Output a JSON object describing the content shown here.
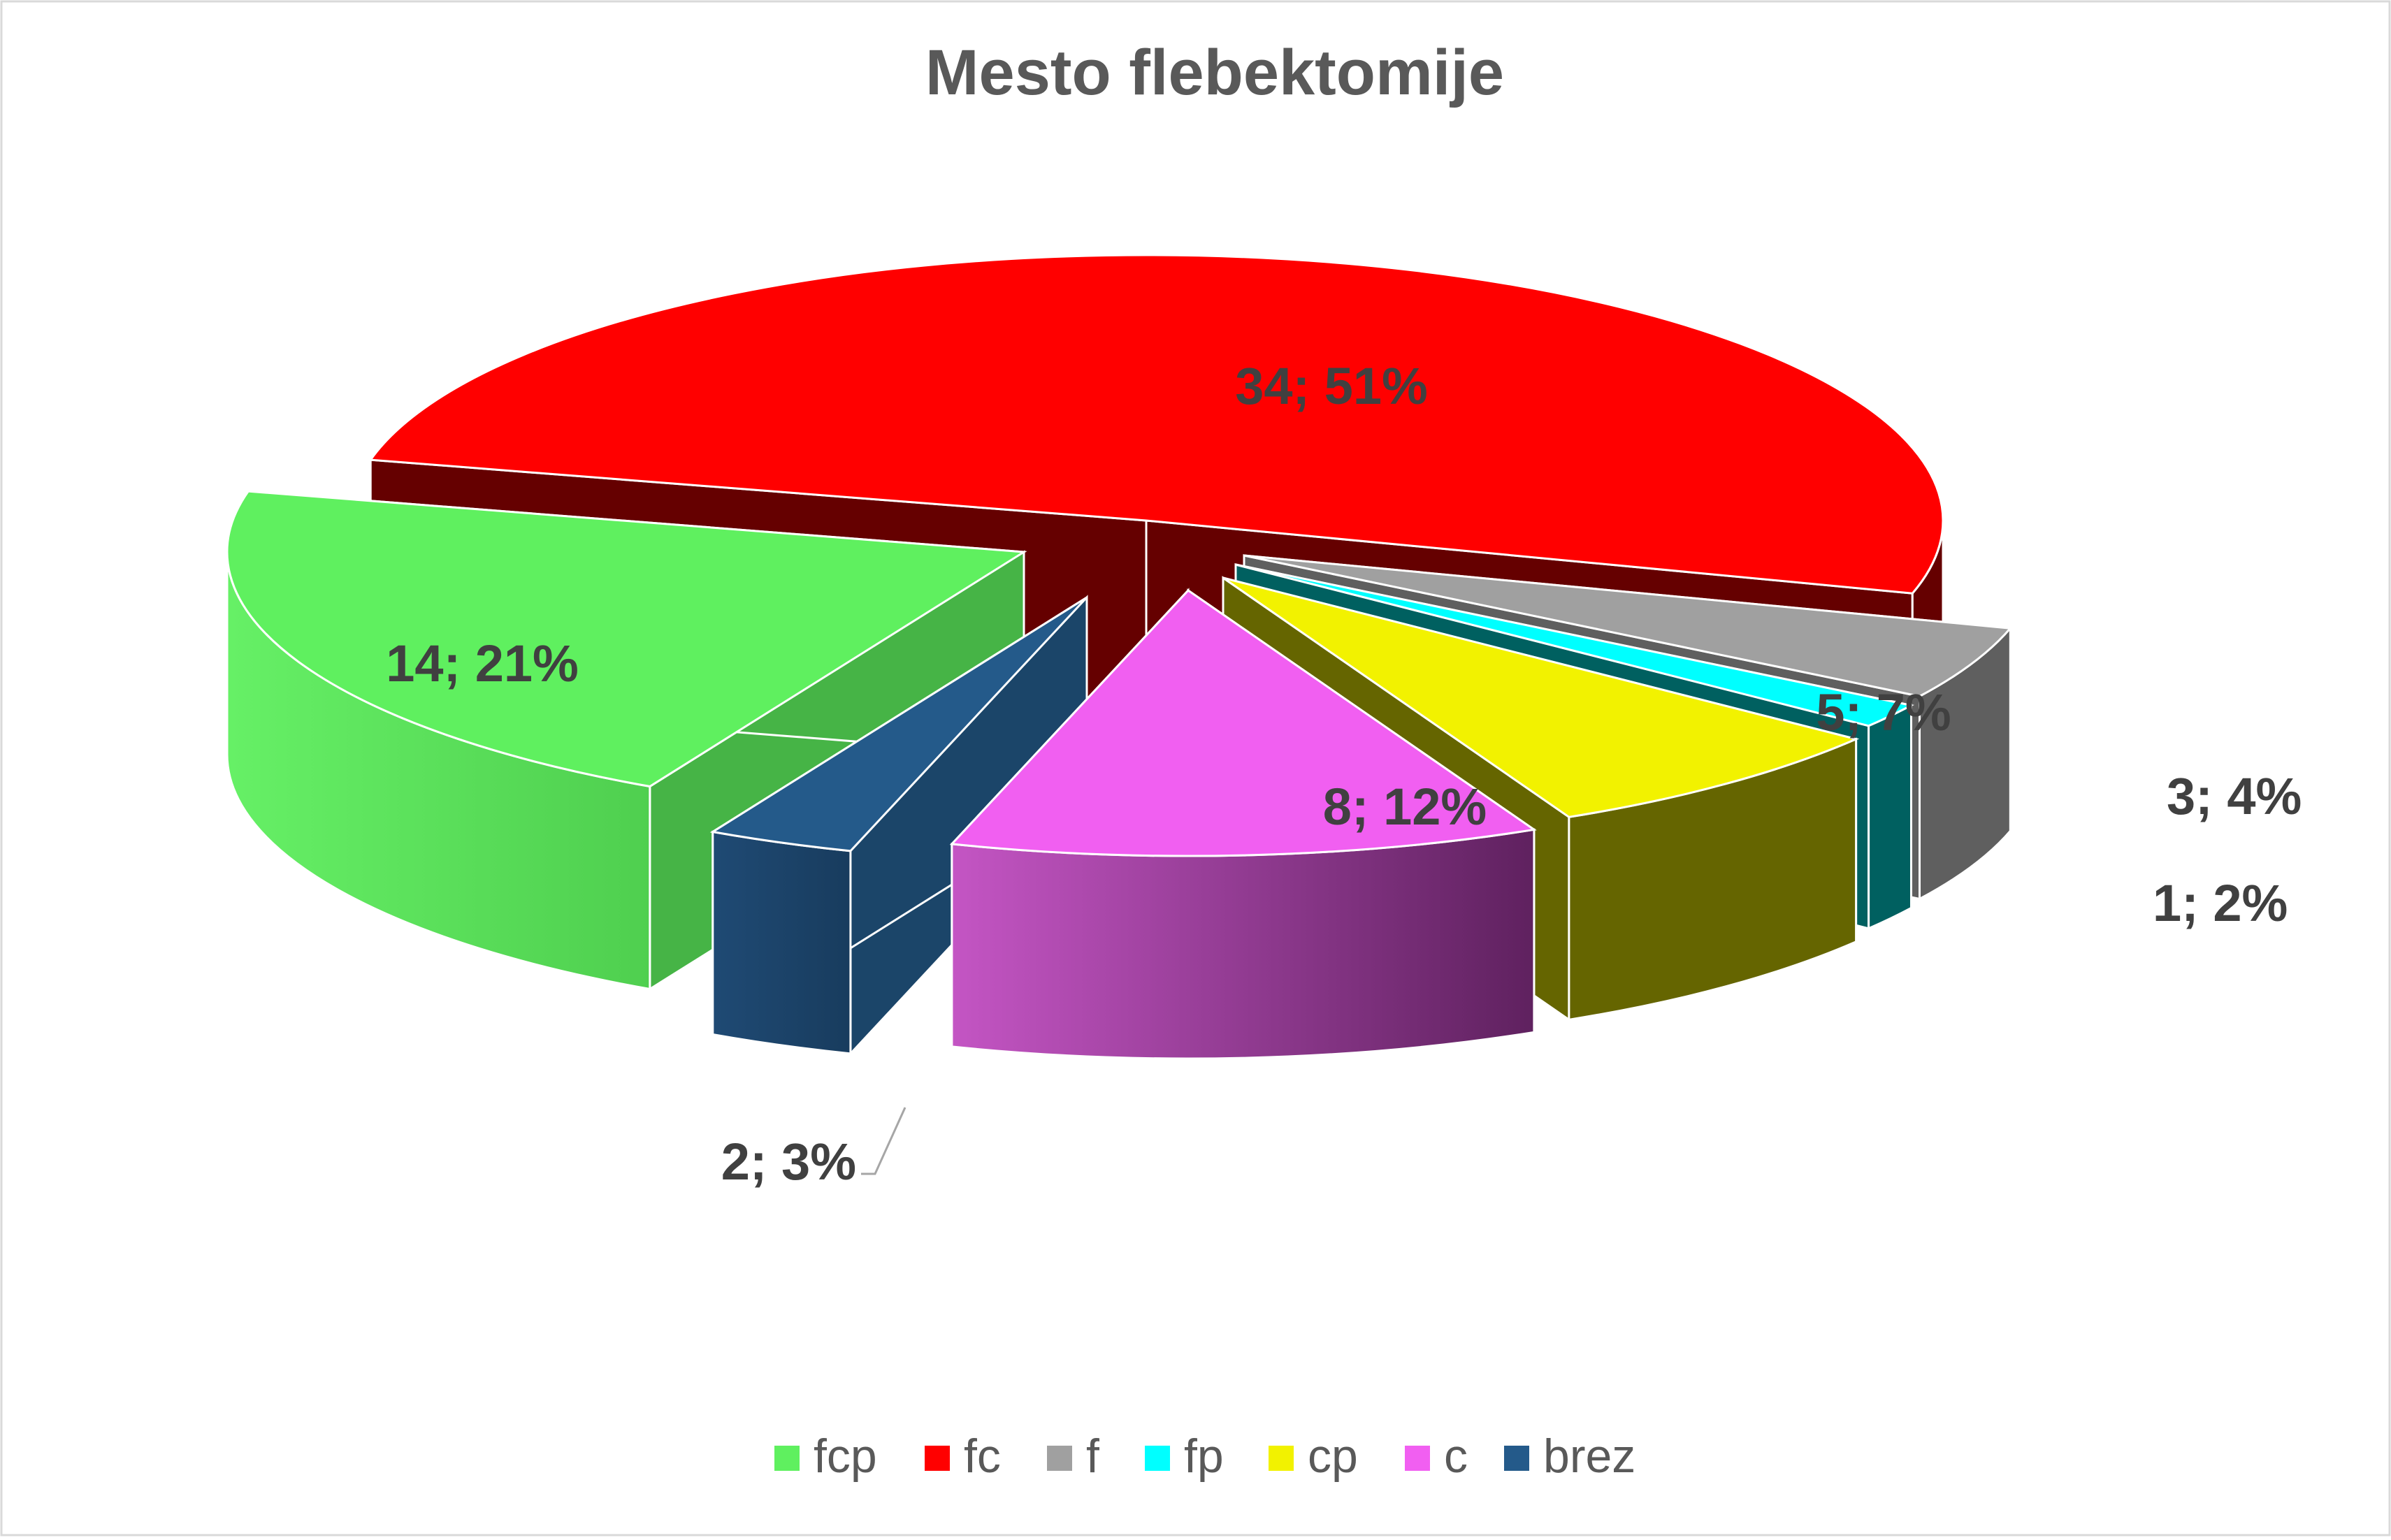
{
  "chart_data": {
    "type": "pie",
    "title": "Mesto flebektomije",
    "legend_position": "bottom",
    "series": [
      {
        "name": "fcp",
        "value": 14,
        "percent": "21%",
        "label": "14; 21%",
        "color": "#5ff05f",
        "dark": "#46b446"
      },
      {
        "name": "fc",
        "value": 34,
        "percent": "51%",
        "label": "34; 51%",
        "color": "#ff0000",
        "dark": "#650000"
      },
      {
        "name": "f",
        "value": 3,
        "percent": "4%",
        "label": "3; 4%",
        "color": "#a0a0a0",
        "dark": "#5f5f5f"
      },
      {
        "name": "fp",
        "value": 1,
        "percent": "2%",
        "label": "1; 2%",
        "color": "#00ffff",
        "dark": "#006060"
      },
      {
        "name": "cp",
        "value": 5,
        "percent": "7%",
        "label": "5; 7%",
        "color": "#f2f200",
        "dark": "#656500"
      },
      {
        "name": "c",
        "value": 8,
        "percent": "12%",
        "label": "8; 12%",
        "color": "#f15ff1",
        "dark": "#5f215f"
      },
      {
        "name": "brez",
        "value": 2,
        "percent": "3%",
        "label": "2; 3%",
        "color": "#245a8a",
        "dark": "#1b4569"
      }
    ]
  }
}
